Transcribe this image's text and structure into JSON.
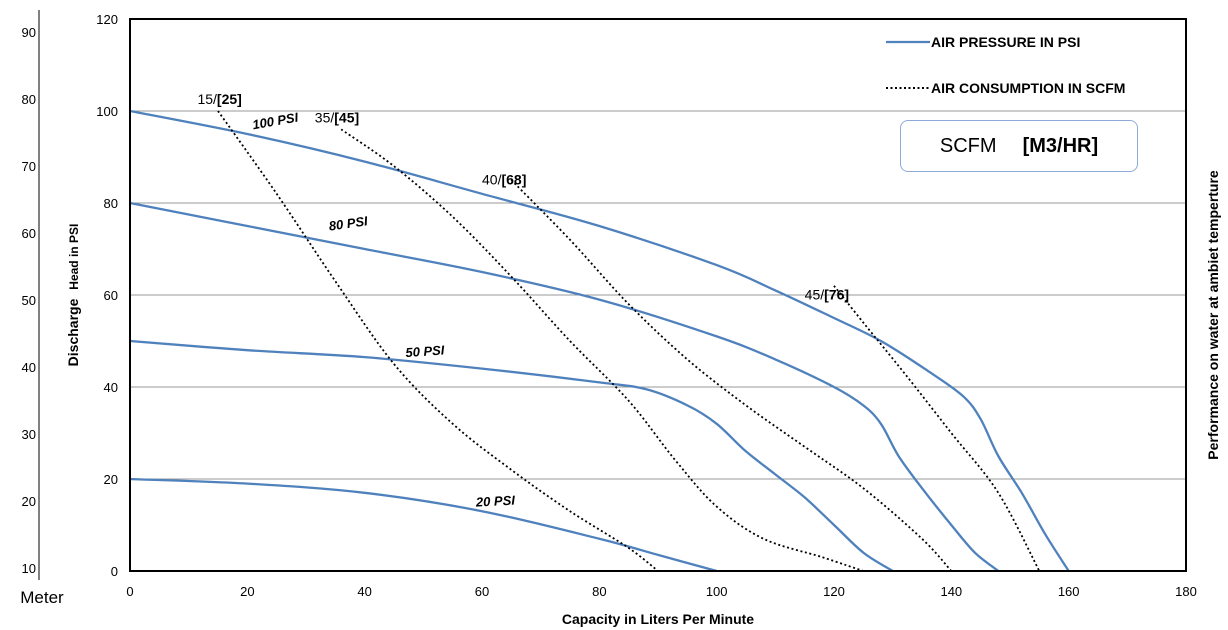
{
  "chart_data": {
    "type": "line",
    "xlabel": "Capacity in Liters Per Minute",
    "ylabel_main": "Discharge",
    "ylabel_sub": "Head in PSI",
    "left_axis_label": "Meter",
    "right_axis_label": "Performance on water at ambiet temperture",
    "xlim": [
      0,
      180
    ],
    "ylim": [
      0,
      120
    ],
    "x_ticks": [
      "0",
      "20",
      "40",
      "60",
      "80",
      "100",
      "120",
      "140",
      "160",
      "180"
    ],
    "y_ticks": [
      "0",
      "20",
      "40",
      "60",
      "80",
      "100",
      "120"
    ],
    "meter_ticks": [
      "90",
      "80",
      "70",
      "60",
      "50",
      "40",
      "30",
      "20",
      "10"
    ],
    "grid": true,
    "legend": {
      "placement": "top-right",
      "items": [
        {
          "label": "AIR PRESSURE IN PSI",
          "style": "solid",
          "color": "#4f81bd"
        },
        {
          "label": "AIR CONSUMPTION IN SCFM",
          "style": "dotted",
          "color": "#000000"
        }
      ]
    },
    "unit_box": {
      "left": "SCFM",
      "right": "[M3/HR]"
    },
    "series": [
      {
        "name": "100 PSI",
        "style": "solid",
        "color": "#4f81bd",
        "points": [
          [
            0,
            100
          ],
          [
            20,
            95
          ],
          [
            40,
            89
          ],
          [
            60,
            82
          ],
          [
            80,
            75
          ],
          [
            100,
            66.5
          ],
          [
            110,
            61
          ],
          [
            120,
            55
          ],
          [
            128,
            50
          ],
          [
            136,
            43.5
          ],
          [
            142,
            38
          ],
          [
            145,
            33
          ],
          [
            148,
            25
          ],
          [
            152,
            17
          ],
          [
            156,
            8
          ],
          [
            160,
            0
          ]
        ]
      },
      {
        "name": "80 PSI",
        "style": "solid",
        "color": "#4f81bd",
        "points": [
          [
            0,
            80
          ],
          [
            20,
            75
          ],
          [
            40,
            70
          ],
          [
            60,
            65
          ],
          [
            80,
            59
          ],
          [
            100,
            51
          ],
          [
            110,
            46
          ],
          [
            120,
            40
          ],
          [
            125,
            36
          ],
          [
            128,
            32
          ],
          [
            131,
            25
          ],
          [
            135,
            18
          ],
          [
            140,
            10
          ],
          [
            144,
            4
          ],
          [
            148,
            0
          ]
        ]
      },
      {
        "name": "50 PSI",
        "style": "solid",
        "color": "#4f81bd",
        "points": [
          [
            0,
            50
          ],
          [
            20,
            48
          ],
          [
            40,
            46.5
          ],
          [
            60,
            44
          ],
          [
            80,
            41
          ],
          [
            88,
            39.5
          ],
          [
            95,
            36
          ],
          [
            100,
            32
          ],
          [
            105,
            26
          ],
          [
            110,
            21
          ],
          [
            115,
            16
          ],
          [
            120,
            10
          ],
          [
            125,
            4
          ],
          [
            130,
            0
          ]
        ]
      },
      {
        "name": "20 PSI",
        "style": "solid",
        "color": "#4f81bd",
        "points": [
          [
            0,
            20
          ],
          [
            20,
            19
          ],
          [
            40,
            17
          ],
          [
            60,
            13
          ],
          [
            80,
            7
          ],
          [
            90,
            3.5
          ],
          [
            100,
            0
          ]
        ]
      }
    ],
    "consumption_lines": [
      {
        "label_a": "15/",
        "label_b": "[25]",
        "style": "dotted",
        "points": [
          [
            15,
            100
          ],
          [
            25,
            82
          ],
          [
            35,
            63
          ],
          [
            45,
            45
          ],
          [
            55,
            32
          ],
          [
            65,
            22
          ],
          [
            75,
            13
          ],
          [
            85,
            5
          ],
          [
            90,
            0
          ]
        ]
      },
      {
        "label_a": "35/",
        "label_b": "[45]",
        "style": "dotted",
        "points": [
          [
            36,
            96
          ],
          [
            45,
            88
          ],
          [
            55,
            77
          ],
          [
            65,
            64
          ],
          [
            75,
            50
          ],
          [
            85,
            37
          ],
          [
            93,
            24
          ],
          [
            100,
            14
          ],
          [
            108,
            7
          ],
          [
            118,
            3
          ],
          [
            125,
            0
          ]
        ]
      },
      {
        "label_a": "40/",
        "label_b": "[68]",
        "style": "dotted",
        "points": [
          [
            65,
            85
          ],
          [
            75,
            72
          ],
          [
            85,
            58
          ],
          [
            95,
            46
          ],
          [
            105,
            36
          ],
          [
            115,
            27
          ],
          [
            125,
            18
          ],
          [
            135,
            7
          ],
          [
            140,
            0
          ]
        ]
      },
      {
        "label_a": "45/",
        "label_b": "[76]",
        "style": "dotted",
        "points": [
          [
            120,
            62
          ],
          [
            125,
            54
          ],
          [
            132,
            43
          ],
          [
            140,
            30
          ],
          [
            148,
            17
          ],
          [
            155,
            0
          ]
        ]
      }
    ]
  }
}
